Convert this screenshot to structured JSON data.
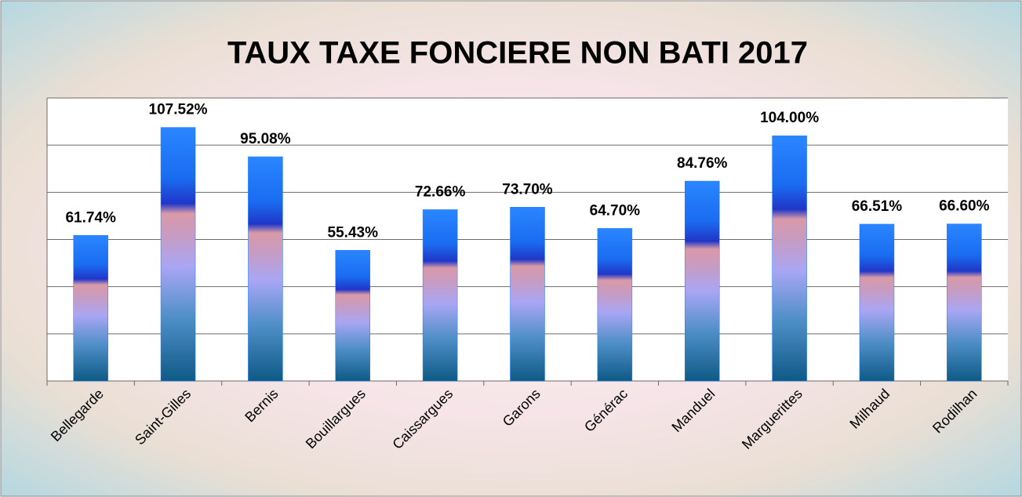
{
  "chart_data": {
    "type": "bar",
    "title": "TAUX TAXE FONCIERE NON BATI 2017",
    "categories": [
      "Bellegarde",
      "Saint-Gilles",
      "Bernis",
      "Bouillargues",
      "Caissargues",
      "Garons",
      "Générac",
      "Manduel",
      "Marguerittes",
      "Milhaud",
      "Rodilhan"
    ],
    "values": [
      61.74,
      107.52,
      95.08,
      55.43,
      72.66,
      73.7,
      64.7,
      84.76,
      104.0,
      66.51,
      66.6
    ],
    "value_labels": [
      "61.74%",
      "107.52%",
      "95.08%",
      "55.43%",
      "72.66%",
      "73.70%",
      "64.70%",
      "84.76%",
      "104.00%",
      "66.51%",
      "66.60%"
    ],
    "color": "#1e7bff",
    "ylim": [
      0,
      120
    ],
    "yticks": [
      0,
      20,
      40,
      60,
      80,
      100,
      120
    ],
    "grid": true
  }
}
